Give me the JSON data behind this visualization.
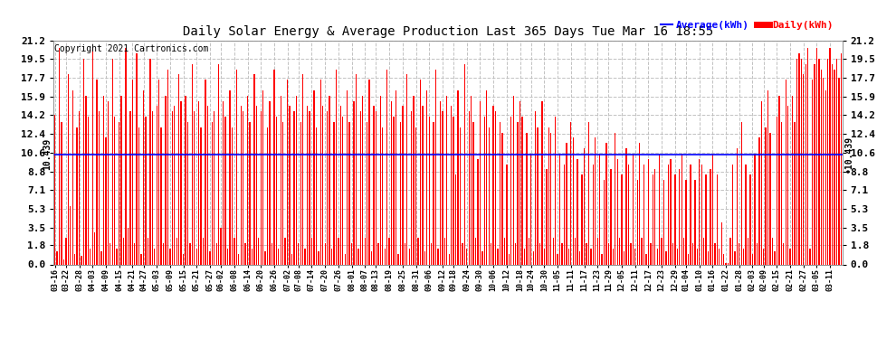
{
  "title": "Daily Solar Energy & Average Production Last 365 Days Tue Mar 16 18:55",
  "copyright": "Copyright 2021 Cartronics.com",
  "average_label": "Average(kWh)",
  "daily_label": "Daily(kWh)",
  "average_value": 10.439,
  "average_line_label": "10.439",
  "bar_color": "#FF0000",
  "average_color": "#0000FF",
  "background_color": "#FFFFFF",
  "grid_color": "#BBBBBB",
  "yticks": [
    0.0,
    1.8,
    3.5,
    5.3,
    7.1,
    8.8,
    10.6,
    12.4,
    14.2,
    15.9,
    17.7,
    19.5,
    21.2
  ],
  "ylim": [
    0.0,
    21.2
  ],
  "x_labels": [
    "03-16",
    "03-22",
    "03-28",
    "04-03",
    "04-09",
    "04-15",
    "04-21",
    "04-27",
    "05-03",
    "05-09",
    "05-15",
    "05-21",
    "05-27",
    "06-02",
    "06-08",
    "06-14",
    "06-20",
    "06-26",
    "07-02",
    "07-08",
    "07-14",
    "07-20",
    "07-26",
    "08-01",
    "08-07",
    "08-13",
    "08-19",
    "08-25",
    "08-31",
    "09-06",
    "09-12",
    "09-18",
    "09-24",
    "09-30",
    "10-06",
    "10-12",
    "10-18",
    "10-24",
    "10-30",
    "11-05",
    "11-11",
    "11-17",
    "11-23",
    "11-29",
    "12-05",
    "12-11",
    "12-17",
    "12-23",
    "12-29",
    "01-04",
    "01-10",
    "01-16",
    "01-22",
    "01-28",
    "02-03",
    "02-09",
    "02-15",
    "02-21",
    "02-27",
    "03-05",
    "03-11"
  ],
  "daily_values": [
    14.2,
    1.2,
    20.5,
    13.5,
    0.5,
    2.5,
    18.0,
    5.5,
    16.5,
    1.0,
    13.0,
    14.5,
    0.8,
    19.5,
    16.0,
    14.0,
    1.5,
    20.5,
    3.0,
    17.5,
    14.5,
    1.2,
    16.0,
    12.0,
    15.5,
    2.0,
    19.5,
    14.0,
    1.5,
    13.5,
    16.0,
    2.5,
    20.5,
    3.5,
    14.5,
    17.5,
    2.0,
    20.0,
    13.0,
    1.0,
    16.5,
    14.0,
    2.5,
    19.5,
    14.5,
    1.5,
    15.0,
    17.5,
    13.0,
    2.0,
    16.0,
    18.5,
    1.5,
    14.5,
    15.0,
    2.5,
    18.0,
    15.5,
    1.0,
    16.0,
    13.5,
    2.0,
    19.0,
    14.5,
    1.5,
    15.5,
    13.0,
    2.5,
    17.5,
    15.0,
    1.2,
    13.5,
    14.5,
    2.0,
    19.0,
    3.5,
    15.5,
    14.0,
    1.5,
    16.5,
    13.0,
    2.5,
    18.5,
    1.0,
    15.0,
    14.5,
    2.0,
    16.0,
    13.5,
    1.5,
    18.0,
    15.0,
    2.5,
    14.5,
    16.5,
    1.2,
    13.0,
    15.5,
    2.0,
    18.5,
    14.0,
    1.5,
    16.0,
    13.5,
    2.5,
    17.5,
    15.0,
    1.0,
    14.5,
    16.0,
    2.0,
    13.5,
    18.0,
    1.5,
    15.0,
    14.5,
    2.5,
    16.5,
    13.0,
    1.2,
    17.5,
    15.0,
    2.0,
    14.5,
    16.0,
    1.5,
    13.5,
    18.5,
    2.5,
    15.0,
    14.0,
    1.0,
    16.5,
    13.5,
    2.0,
    15.5,
    18.0,
    1.5,
    14.5,
    16.0,
    2.5,
    13.5,
    17.5,
    1.2,
    15.0,
    14.5,
    2.0,
    16.0,
    13.0,
    1.5,
    18.5,
    2.5,
    15.5,
    14.0,
    16.5,
    1.0,
    13.5,
    15.0,
    2.0,
    18.0,
    1.5,
    14.5,
    16.0,
    13.0,
    2.5,
    17.5,
    15.0,
    1.2,
    16.5,
    14.0,
    2.0,
    13.5,
    18.5,
    1.5,
    15.5,
    14.5,
    2.5,
    16.0,
    1.0,
    15.0,
    14.0,
    8.5,
    16.5,
    13.0,
    2.0,
    19.0,
    1.5,
    14.5,
    16.0,
    13.5,
    2.5,
    10.0,
    15.5,
    1.2,
    14.0,
    16.5,
    13.0,
    2.0,
    15.0,
    14.5,
    1.5,
    13.5,
    12.5,
    2.5,
    9.5,
    1.0,
    14.0,
    16.0,
    2.0,
    13.5,
    15.5,
    14.0,
    1.5,
    12.5,
    2.5,
    10.5,
    1.2,
    14.5,
    13.0,
    2.0,
    15.5,
    1.5,
    9.0,
    13.0,
    12.5,
    2.5,
    14.0,
    1.0,
    10.5,
    2.0,
    9.5,
    11.5,
    1.5,
    13.5,
    12.0,
    2.5,
    10.0,
    1.2,
    8.5,
    11.0,
    2.0,
    13.5,
    1.5,
    9.5,
    12.0,
    2.5,
    10.5,
    1.0,
    8.0,
    11.5,
    2.0,
    9.0,
    1.5,
    12.5,
    10.0,
    2.5,
    8.5,
    1.2,
    11.0,
    9.5,
    2.0,
    10.5,
    1.5,
    8.0,
    11.5,
    2.5,
    9.5,
    1.0,
    10.0,
    2.0,
    8.5,
    9.0,
    1.5,
    10.5,
    2.5,
    8.0,
    1.2,
    9.5,
    10.0,
    2.0,
    8.5,
    1.5,
    9.0,
    10.5,
    2.5,
    8.0,
    1.0,
    9.5,
    2.0,
    8.0,
    1.5,
    10.0,
    9.5,
    2.5,
    8.5,
    1.2,
    9.0,
    10.5,
    2.0,
    8.5,
    1.5,
    4.0,
    1.0,
    0.1,
    0.1,
    2.5,
    9.5,
    1.2,
    11.0,
    2.0,
    13.5,
    1.5,
    9.5,
    2.5,
    8.5,
    1.0,
    10.5,
    2.0,
    12.0,
    15.5,
    1.5,
    13.0,
    16.5,
    12.5,
    2.5,
    1.2,
    14.0,
    16.0,
    13.5,
    2.0,
    17.5,
    15.0,
    1.5,
    16.0,
    13.5,
    19.5,
    20.0,
    19.5,
    18.0,
    19.0,
    20.5,
    1.5,
    17.5,
    19.0,
    20.5,
    19.5,
    18.5,
    17.7,
    16.5,
    19.5,
    20.5,
    19.0,
    18.5,
    19.5,
    17.7,
    20.0
  ]
}
